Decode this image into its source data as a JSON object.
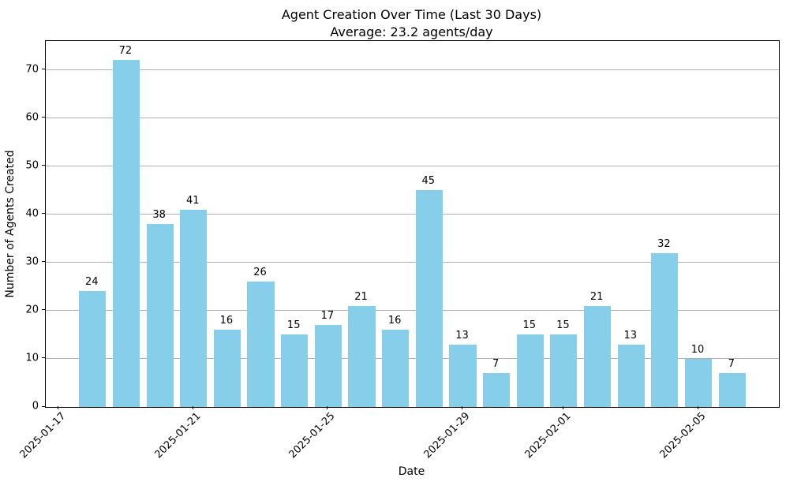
{
  "chart_data": {
    "type": "bar",
    "title": "Agent Creation Over Time (Last 30 Days)",
    "subtitle": "Average: 23.2 agents/day",
    "xlabel": "Date",
    "ylabel": "Number of Agents Created",
    "categories": [
      "2025-01-18",
      "2025-01-19",
      "2025-01-20",
      "2025-01-21",
      "2025-01-22",
      "2025-01-23",
      "2025-01-24",
      "2025-01-25",
      "2025-01-26",
      "2025-01-27",
      "2025-01-28",
      "2025-01-29",
      "2025-01-30",
      "2025-01-31",
      "2025-02-01",
      "2025-02-02",
      "2025-02-03",
      "2025-02-04",
      "2025-02-05",
      "2025-02-06"
    ],
    "values": [
      24,
      72,
      38,
      41,
      16,
      26,
      15,
      17,
      21,
      16,
      45,
      13,
      7,
      15,
      15,
      21,
      13,
      32,
      10,
      7
    ],
    "xtick_labels": [
      "2025-01-17",
      "2025-01-21",
      "2025-01-25",
      "2025-01-29",
      "2025-02-01",
      "2025-02-05"
    ],
    "yticks": [
      0,
      10,
      20,
      30,
      40,
      50,
      60,
      70
    ],
    "ylim": [
      0,
      76
    ],
    "x_margin_days": 1.39,
    "bar_width_days": 0.8,
    "tick_rotation_deg": 45,
    "grid": "y",
    "legend": "none",
    "value_labels_shown": true,
    "bar_color": "#87CEEB",
    "grid_color": "#b0b0b0",
    "axis_color": "#000000",
    "text_color": "#000000",
    "background_color": "#ffffff"
  }
}
